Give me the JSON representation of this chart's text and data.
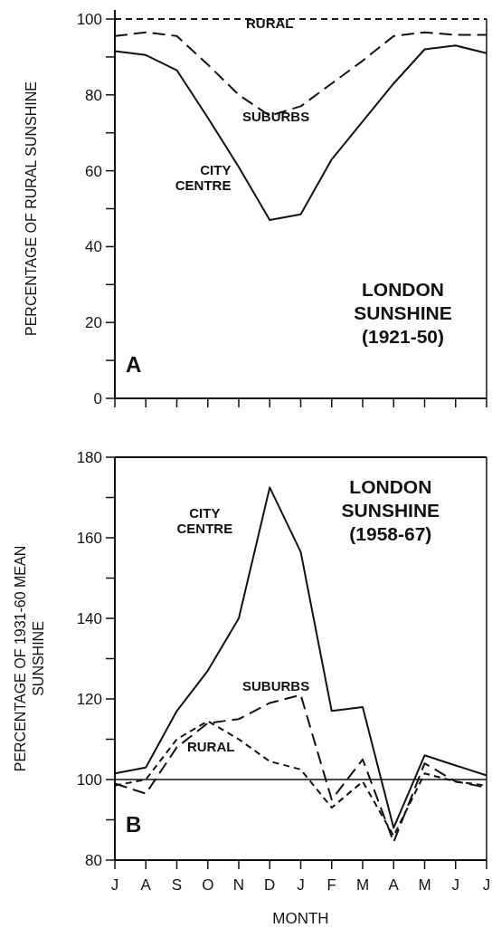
{
  "chart_data": [
    {
      "type": "line",
      "title": "LONDON SUNSHINE (1921-50)",
      "ylabel": "PERCENTAGE OF RURAL SUNSHINE",
      "annotations": [
        "A"
      ],
      "categories": [
        null,
        null,
        null,
        null,
        null,
        null,
        null,
        null,
        null,
        null,
        null,
        null,
        null
      ],
      "series": [
        {
          "name": "CITY CENTRE",
          "color": "#111111",
          "line_style": "solid",
          "values": [
            91.5,
            90.5,
            86.5,
            74,
            61,
            47,
            48.5,
            63,
            73,
            83,
            92,
            93,
            91
          ]
        },
        {
          "name": "SUBURBS",
          "color": "#111111",
          "line_style": "dashed",
          "values": [
            95.5,
            96.5,
            95.5,
            88,
            80,
            74.5,
            77,
            83,
            89,
            95.5,
            96.5,
            95.8,
            95.8
          ]
        },
        {
          "name": "RURAL",
          "color": "#111111",
          "line_style": "dashed",
          "values": [
            100,
            100,
            100,
            100,
            100,
            100,
            100,
            100,
            100,
            100,
            100,
            100,
            100
          ]
        }
      ],
      "ylim": [
        0,
        100
      ],
      "yticks": [
        0,
        {
          "value": 10,
          "label": null
        },
        20,
        {
          "value": 30,
          "label": null
        },
        40,
        {
          "value": 50,
          "label": null
        },
        60,
        {
          "value": 70,
          "label": null
        },
        80,
        {
          "value": 90,
          "label": null
        },
        100
      ],
      "tick_labels": "y",
      "grid": false,
      "legend": false,
      "marker": "none"
    },
    {
      "type": "line",
      "title": "LONDON SUNSHINE (1958-67)",
      "ylabel": "PERCENTAGE OF 1931-60 MEAN SUNSHINE",
      "xlabel": "MONTH",
      "annotations": [
        "B"
      ],
      "categories": [
        "J",
        "A",
        "S",
        "O",
        "N",
        "D",
        "J",
        "F",
        "M",
        "A",
        "M",
        "J",
        "J"
      ],
      "series": [
        {
          "name": "CITY CENTRE",
          "color": "#111111",
          "line_style": "solid",
          "values": [
            101.5,
            103,
            117,
            127,
            140,
            172.5,
            156.5,
            117,
            118,
            88,
            106,
            103.5,
            101
          ]
        },
        {
          "name": "SUBURBS",
          "color": "#111111",
          "line_style": "dashed",
          "values": [
            99,
            96.5,
            108,
            114,
            115,
            119,
            121,
            95,
            105,
            84.5,
            104,
            99.5,
            98
          ]
        },
        {
          "name": "RURAL",
          "color": "#111111",
          "line_style": "dashed",
          "values": [
            98.5,
            100,
            110,
            114.5,
            110,
            104.5,
            102.5,
            93,
            99.5,
            86,
            101.5,
            99.5,
            98.5
          ]
        }
      ],
      "ylim": [
        80,
        180
      ],
      "yticks": [
        80,
        {
          "value": 90,
          "label": null
        },
        100,
        {
          "value": 110,
          "label": null
        },
        120,
        {
          "value": 130,
          "label": null
        },
        140,
        {
          "value": 150,
          "label": null
        },
        160,
        {
          "value": 170,
          "label": null
        },
        180
      ],
      "ref_lines": [
        {
          "axis": "y",
          "value": 100,
          "color": "#111111",
          "line_style": "solid"
        }
      ],
      "grid": false,
      "legend": false,
      "marker": "none"
    }
  ]
}
